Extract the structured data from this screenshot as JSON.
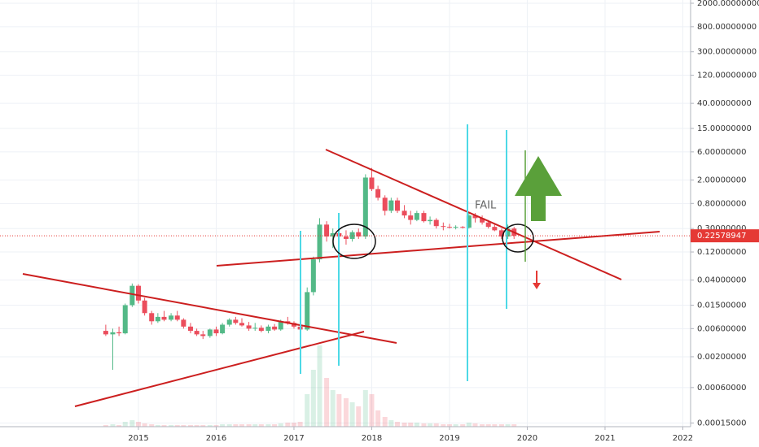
{
  "chart_data": {
    "type": "candlestick",
    "log_scale": true,
    "grid": true,
    "up_color": "#53b987",
    "down_color": "#eb4d5c",
    "x": [
      2014.58,
      2014.67,
      2014.75,
      2014.83,
      2014.92,
      2015.0,
      2015.08,
      2015.17,
      2015.25,
      2015.33,
      2015.42,
      2015.5,
      2015.58,
      2015.67,
      2015.75,
      2015.83,
      2015.92,
      2016.0,
      2016.08,
      2016.17,
      2016.25,
      2016.33,
      2016.42,
      2016.5,
      2016.58,
      2016.67,
      2016.75,
      2016.83,
      2016.92,
      2017.0,
      2017.08,
      2017.17,
      2017.25,
      2017.33,
      2017.42,
      2017.5,
      2017.58,
      2017.67,
      2017.75,
      2017.83,
      2017.92,
      2018.0,
      2018.08,
      2018.17,
      2018.25,
      2018.33,
      2018.42,
      2018.5,
      2018.58,
      2018.67,
      2018.75,
      2018.83,
      2018.92,
      2019.0,
      2019.08,
      2019.17,
      2019.25,
      2019.33,
      2019.42,
      2019.5,
      2019.58,
      2019.67,
      2019.75,
      2019.83
    ],
    "open": [
      0.0055,
      0.0048,
      0.0052,
      0.005,
      0.015,
      0.032,
      0.018,
      0.011,
      0.008,
      0.0095,
      0.0085,
      0.01,
      0.0085,
      0.0065,
      0.0055,
      0.0048,
      0.0045,
      0.0058,
      0.005,
      0.007,
      0.0085,
      0.0075,
      0.0068,
      0.006,
      0.0062,
      0.0055,
      0.0065,
      0.0058,
      0.008,
      0.0075,
      0.0065,
      0.0058,
      0.025,
      0.09,
      0.35,
      0.22,
      0.25,
      0.22,
      0.2,
      0.26,
      0.22,
      2.2,
      1.4,
      1.0,
      0.6,
      0.9,
      0.6,
      0.5,
      0.42,
      0.55,
      0.4,
      0.42,
      0.33,
      0.32,
      0.31,
      0.32,
      0.31,
      0.5,
      0.45,
      0.38,
      0.32,
      0.28,
      0.22,
      0.3
    ],
    "high": [
      0.007,
      0.006,
      0.0065,
      0.016,
      0.035,
      0.034,
      0.02,
      0.012,
      0.011,
      0.012,
      0.011,
      0.012,
      0.009,
      0.0075,
      0.006,
      0.0055,
      0.006,
      0.0065,
      0.0075,
      0.009,
      0.0095,
      0.009,
      0.0078,
      0.0075,
      0.0068,
      0.007,
      0.0072,
      0.0085,
      0.0095,
      0.008,
      0.007,
      0.03,
      0.1,
      0.45,
      0.4,
      0.3,
      0.3,
      0.28,
      0.28,
      0.3,
      2.5,
      3.2,
      1.6,
      1.1,
      1.0,
      1.0,
      0.75,
      0.6,
      0.6,
      0.6,
      0.48,
      0.45,
      0.38,
      0.36,
      0.34,
      0.33,
      0.55,
      0.55,
      0.5,
      0.42,
      0.35,
      0.3,
      0.35,
      0.32
    ],
    "low": [
      0.0045,
      0.0012,
      0.0045,
      0.0048,
      0.014,
      0.016,
      0.01,
      0.007,
      0.0075,
      0.008,
      0.008,
      0.008,
      0.006,
      0.005,
      0.0045,
      0.004,
      0.0042,
      0.0045,
      0.0048,
      0.0065,
      0.007,
      0.0065,
      0.0055,
      0.0055,
      0.0052,
      0.005,
      0.0055,
      0.0055,
      0.007,
      0.006,
      0.0055,
      0.0055,
      0.022,
      0.08,
      0.18,
      0.14,
      0.17,
      0.16,
      0.18,
      0.2,
      0.2,
      1.3,
      0.9,
      0.5,
      0.55,
      0.55,
      0.45,
      0.35,
      0.4,
      0.38,
      0.35,
      0.3,
      0.28,
      0.3,
      0.29,
      0.3,
      0.3,
      0.38,
      0.35,
      0.3,
      0.27,
      0.2,
      0.2,
      0.2
    ],
    "close": [
      0.0048,
      0.0052,
      0.005,
      0.015,
      0.032,
      0.018,
      0.011,
      0.008,
      0.0095,
      0.0085,
      0.01,
      0.0085,
      0.0065,
      0.0055,
      0.0048,
      0.0045,
      0.0058,
      0.005,
      0.007,
      0.0085,
      0.0075,
      0.0068,
      0.006,
      0.0062,
      0.0055,
      0.0065,
      0.0058,
      0.008,
      0.0075,
      0.0065,
      0.0058,
      0.025,
      0.09,
      0.35,
      0.22,
      0.25,
      0.22,
      0.2,
      0.26,
      0.22,
      2.2,
      1.4,
      1.0,
      0.6,
      0.9,
      0.6,
      0.5,
      0.42,
      0.55,
      0.4,
      0.42,
      0.33,
      0.32,
      0.31,
      0.32,
      0.31,
      0.5,
      0.45,
      0.38,
      0.32,
      0.28,
      0.22,
      0.3,
      0.22578947
    ],
    "volume": [
      2,
      3,
      2,
      6,
      8,
      6,
      4,
      3,
      2,
      2,
      2,
      2,
      2,
      2,
      2,
      2,
      2,
      2,
      3,
      3,
      3,
      3,
      3,
      3,
      3,
      3,
      3,
      4,
      5,
      5,
      6,
      40,
      70,
      100,
      60,
      45,
      40,
      35,
      30,
      25,
      45,
      40,
      20,
      12,
      8,
      6,
      5,
      5,
      5,
      4,
      4,
      4,
      3,
      3,
      3,
      3,
      5,
      4,
      3,
      3,
      3,
      3,
      3,
      3
    ],
    "xlim": [
      2013.22,
      2022.1
    ],
    "xticks": [
      2015,
      2016,
      2017,
      2018,
      2019,
      2020,
      2021,
      2022
    ],
    "ylim": [
      0.00013,
      2270
    ],
    "yticks": [
      {
        "value": 2000,
        "label": "2000.00000000"
      },
      {
        "value": 800,
        "label": "800.00000000"
      },
      {
        "value": 300,
        "label": "300.00000000"
      },
      {
        "value": 120,
        "label": "120.00000000"
      },
      {
        "value": 40,
        "label": "40.00000000"
      },
      {
        "value": 15,
        "label": "15.00000000"
      },
      {
        "value": 6,
        "label": "6.00000000"
      },
      {
        "value": 2,
        "label": "2.00000000"
      },
      {
        "value": 0.8,
        "label": "0.80000000"
      },
      {
        "value": 0.3,
        "label": "0.30000000"
      },
      {
        "value": 0.12,
        "label": "0.12000000"
      },
      {
        "value": 0.04,
        "label": "0.04000000"
      },
      {
        "value": 0.015,
        "label": "0.01500000"
      },
      {
        "value": 0.006,
        "label": "0.00600000"
      },
      {
        "value": 0.002,
        "label": "0.00200000"
      },
      {
        "value": 0.0006,
        "label": "0.00060000"
      },
      {
        "value": 0.00015,
        "label": "0.00015000"
      }
    ],
    "last_price": 0.22578947,
    "last_price_color": "#e53935",
    "annotation": "FAIL"
  }
}
